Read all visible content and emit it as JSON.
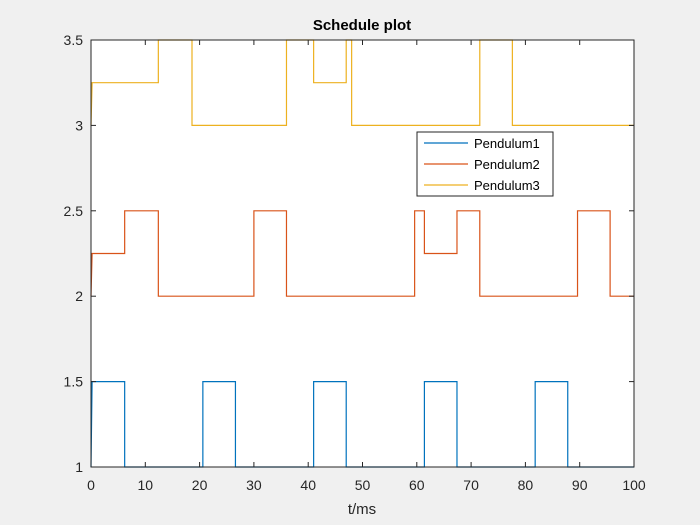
{
  "chart_data": {
    "type": "line",
    "title": "Schedule plot",
    "xlabel": "t/ms",
    "ylabel": "",
    "xlim": [
      0,
      100
    ],
    "ylim": [
      1,
      3.5
    ],
    "x_ticks": [
      0,
      10,
      20,
      30,
      40,
      50,
      60,
      70,
      80,
      90,
      100
    ],
    "y_ticks": [
      1,
      1.5,
      2,
      2.5,
      3,
      3.5
    ],
    "x_tick_labels": [
      "0",
      "10",
      "20",
      "30",
      "40",
      "50",
      "60",
      "70",
      "80",
      "90",
      "100"
    ],
    "y_tick_labels": [
      "1",
      "1.5",
      "2",
      "2.5",
      "3",
      "3.5"
    ],
    "grid": false,
    "legend_position": "upper-right-inside",
    "series": [
      {
        "name": "Pendulum1",
        "color": "#0072BD",
        "x": [
          0,
          0.2,
          6.2,
          6.2,
          20.6,
          20.6,
          26.6,
          26.6,
          41.0,
          41.0,
          47.0,
          47.0,
          61.4,
          61.4,
          67.4,
          67.4,
          81.8,
          81.8,
          87.8,
          87.8,
          100
        ],
        "y": [
          1,
          1.5,
          1.5,
          1,
          1,
          1.5,
          1.5,
          1,
          1,
          1.5,
          1.5,
          1,
          1,
          1.5,
          1.5,
          1,
          1,
          1.5,
          1.5,
          1,
          1
        ]
      },
      {
        "name": "Pendulum2",
        "color": "#D95319",
        "x": [
          0,
          0.2,
          6.2,
          6.2,
          12.4,
          12.4,
          30.0,
          30.0,
          36.0,
          36.0,
          59.6,
          59.6,
          61.4,
          61.4,
          67.4,
          67.4,
          71.6,
          71.6,
          89.6,
          89.6,
          95.6,
          95.6,
          100
        ],
        "y": [
          2,
          2.25,
          2.25,
          2.5,
          2.5,
          2,
          2,
          2.5,
          2.5,
          2,
          2,
          2.5,
          2.5,
          2.25,
          2.25,
          2.5,
          2.5,
          2,
          2,
          2.5,
          2.5,
          2,
          2
        ]
      },
      {
        "name": "Pendulum3",
        "color": "#EDB120",
        "x": [
          0,
          0.2,
          12.4,
          12.4,
          18.6,
          18.6,
          36.0,
          36.0,
          41.0,
          41.0,
          47.0,
          47.0,
          48.0,
          48.0,
          71.6,
          71.6,
          77.6,
          77.6,
          100
        ],
        "y": [
          3,
          3.25,
          3.25,
          3.5,
          3.5,
          3,
          3,
          3.5,
          3.5,
          3.25,
          3.25,
          3.5,
          3.5,
          3,
          3,
          3.5,
          3.5,
          3,
          3
        ]
      }
    ]
  }
}
